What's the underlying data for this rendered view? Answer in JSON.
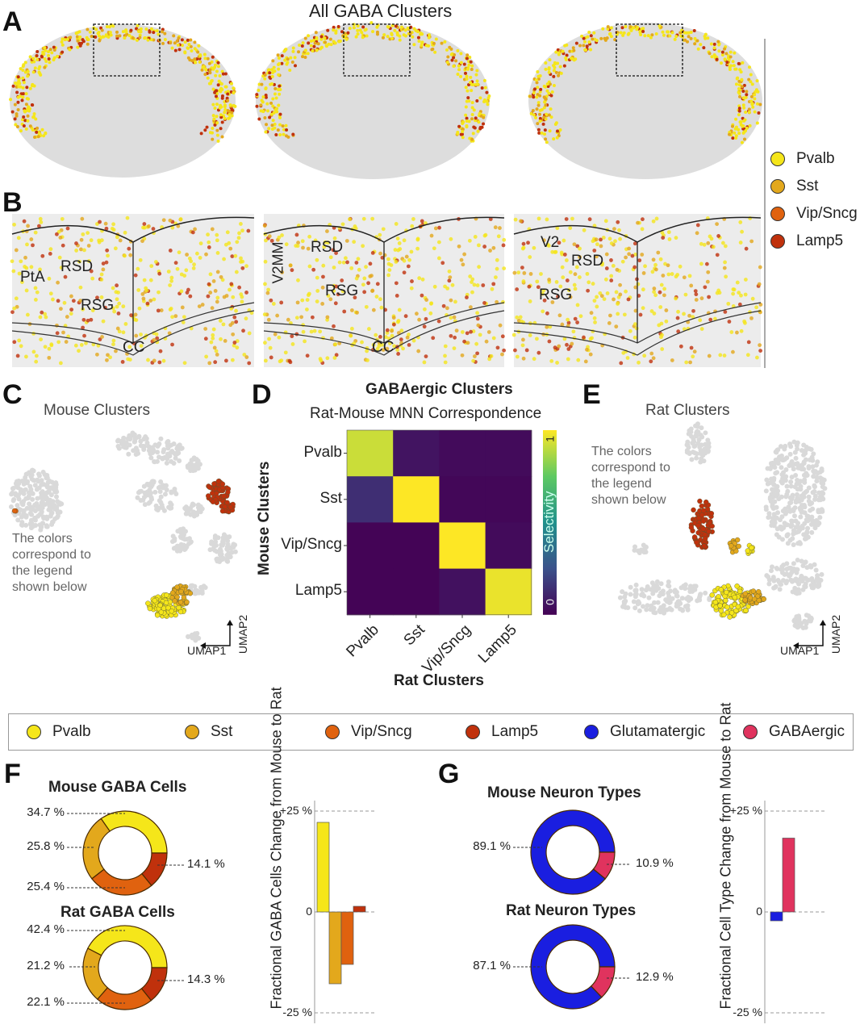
{
  "panel_letters": {
    "a": "A",
    "b": "B",
    "c": "C",
    "d": "D",
    "e": "E",
    "f": "F",
    "g": "G"
  },
  "panel_a": {
    "title": "All GABA Clusters"
  },
  "side_legend": [
    {
      "label": "Pvalb",
      "color": "#f5e61a"
    },
    {
      "label": "Sst",
      "color": "#e3a81c"
    },
    {
      "label": "Vip/Sncg",
      "color": "#e0620f"
    },
    {
      "label": "Lamp5",
      "color": "#c0310c"
    }
  ],
  "panel_b": {
    "regions_1": [
      "PtA",
      "RSD",
      "RSG",
      "CC"
    ],
    "regions_2": [
      "V2MM",
      "RSD",
      "RSG",
      "CC"
    ],
    "regions_3": [
      "V2",
      "RSD",
      "RSG"
    ]
  },
  "panel_c": {
    "title": "Mouse Clusters",
    "note": "The colors correspond to the legend shown below",
    "axis_x": "UMAP1",
    "axis_y": "UMAP2"
  },
  "panel_e": {
    "title": "Rat Clusters",
    "note": "The colors correspond to the legend shown below",
    "axis_x": "UMAP1",
    "axis_y": "UMAP2"
  },
  "legend": [
    {
      "label": "Pvalb",
      "color": "#f5e61a"
    },
    {
      "label": "Sst",
      "color": "#e3a81c"
    },
    {
      "label": "Vip/Sncg",
      "color": "#e0620f"
    },
    {
      "label": "Lamp5",
      "color": "#c0310c"
    },
    {
      "label": "Glutamatergic",
      "color": "#1a1ee0"
    },
    {
      "label": "GABAergic",
      "color": "#e0335e"
    }
  ],
  "chart_data": [
    {
      "type": "heatmap",
      "title": "GABAergic Clusters",
      "subtitle": "Rat-Mouse MNN Correspondence",
      "xlabel": "Rat Clusters",
      "ylabel": "Mouse Clusters",
      "x_categories": [
        "Pvalb",
        "Sst",
        "Vip/Sncg",
        "Lamp5"
      ],
      "y_categories": [
        "Pvalb",
        "Sst",
        "Vip/Sncg",
        "Lamp5"
      ],
      "values": [
        [
          0.92,
          0.06,
          0.03,
          0.03
        ],
        [
          0.14,
          1.0,
          0.02,
          0.02
        ],
        [
          0.01,
          0.01,
          1.0,
          0.03
        ],
        [
          0.01,
          0.01,
          0.05,
          0.97
        ]
      ],
      "colorbar": {
        "label": "Selectivity",
        "min": 0,
        "max": 1,
        "min_label": "0",
        "max_label": "1"
      }
    },
    {
      "type": "pie",
      "title": "Mouse GABA Cells",
      "labels": [
        "Pvalb",
        "Sst",
        "Vip/Sncg",
        "Lamp5"
      ],
      "values": [
        34.7,
        25.8,
        25.4,
        14.1
      ],
      "value_labels": [
        "34.7 %",
        "25.8 %",
        "25.4 %",
        "14.1 %"
      ]
    },
    {
      "type": "pie",
      "title": "Rat GABA Cells",
      "labels": [
        "Pvalb",
        "Sst",
        "Vip/Sncg",
        "Lamp5"
      ],
      "values": [
        42.4,
        21.2,
        22.1,
        14.3
      ],
      "value_labels": [
        "42.4 %",
        "21.2 %",
        "22.1 %",
        "14.3 %"
      ]
    },
    {
      "type": "bar",
      "ylabel": "Fractional GABA Cells Change from Mouse to Rat",
      "categories": [
        "Pvalb",
        "Sst",
        "Vip/Sncg",
        "Lamp5"
      ],
      "values": [
        22.2,
        -17.8,
        -13.0,
        1.4
      ],
      "ylim": [
        -25,
        25
      ],
      "yticks": [
        "+25 %",
        "0",
        "-25 %"
      ]
    },
    {
      "type": "pie",
      "title": "Mouse Neuron Types",
      "labels": [
        "Glutamatergic",
        "GABAergic"
      ],
      "values": [
        89.1,
        10.9
      ],
      "value_labels": [
        "89.1 %",
        "10.9 %"
      ]
    },
    {
      "type": "pie",
      "title": "Rat Neuron Types",
      "labels": [
        "Glutamatergic",
        "GABAergic"
      ],
      "values": [
        87.1,
        12.9
      ],
      "value_labels": [
        "87.1 %",
        "12.9 %"
      ]
    },
    {
      "type": "bar",
      "ylabel": "Fractional Cell Type Change from Mouse to Rat",
      "categories": [
        "Glutamatergic",
        "GABAergic"
      ],
      "values": [
        -2.2,
        18.3
      ],
      "ylim": [
        -25,
        25
      ],
      "yticks": [
        "+25 %",
        "0",
        "-25 %"
      ]
    }
  ]
}
